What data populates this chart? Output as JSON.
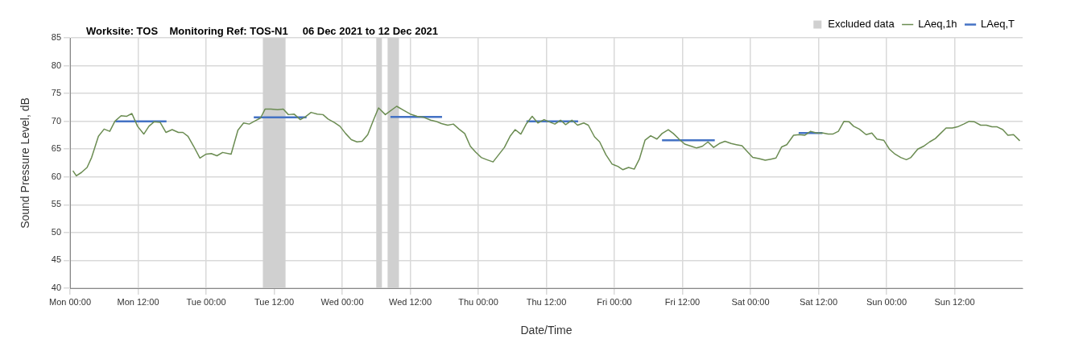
{
  "chart_data": {
    "type": "line",
    "title": "Worksite: TOS    Monitoring Ref: TOS-N1     06 Dec 2021 to 12 Dec 2021",
    "xlabel": "Date/Time",
    "ylabel": "Sound Pressure Level, dB",
    "xlim": [
      "2021-12-06T00:00",
      "2021-12-13T00:00"
    ],
    "xticks": [
      {
        "value": "2021-12-06T00:00",
        "label": "Mon 00:00"
      },
      {
        "value": "2021-12-06T12:00",
        "label": "Mon 12:00"
      },
      {
        "value": "2021-12-07T00:00",
        "label": "Tue 00:00"
      },
      {
        "value": "2021-12-07T12:00",
        "label": "Tue 12:00"
      },
      {
        "value": "2021-12-08T00:00",
        "label": "Wed 00:00"
      },
      {
        "value": "2021-12-08T12:00",
        "label": "Wed 12:00"
      },
      {
        "value": "2021-12-09T00:00",
        "label": "Thu 00:00"
      },
      {
        "value": "2021-12-09T12:00",
        "label": "Thu 12:00"
      },
      {
        "value": "2021-12-10T00:00",
        "label": "Fri 00:00"
      },
      {
        "value": "2021-12-10T12:00",
        "label": "Fri 12:00"
      },
      {
        "value": "2021-12-11T00:00",
        "label": "Sat 00:00"
      },
      {
        "value": "2021-12-11T12:00",
        "label": "Sat 12:00"
      },
      {
        "value": "2021-12-12T00:00",
        "label": "Sun 00:00"
      },
      {
        "value": "2021-12-12T12:00",
        "label": "Sun 12:00"
      }
    ],
    "ylim": [
      40,
      85
    ],
    "yticks": [
      40,
      45,
      50,
      55,
      60,
      65,
      70,
      75,
      80,
      85
    ],
    "grid": true,
    "legend": "top right",
    "marker": "none",
    "line_style": "solid",
    "bands": [
      {
        "axis": "x",
        "from": "2021-12-07T10:00",
        "to": "2021-12-07T14:00",
        "label": "Excluded data",
        "color": "#d0d0d0"
      },
      {
        "axis": "x",
        "from": "2021-12-08T06:00",
        "to": "2021-12-08T07:00",
        "color": "#d0d0d0"
      },
      {
        "axis": "x",
        "from": "2021-12-08T08:00",
        "to": "2021-12-08T10:00",
        "color": "#d0d0d0"
      }
    ],
    "series": [
      {
        "name": "LAeq,1h",
        "color": "#6b8c52",
        "x": [
          "2021-12-06T00:30",
          "2021-12-06T01:06",
          "2021-12-06T02:00",
          "2021-12-06T03:00",
          "2021-12-06T03:48",
          "2021-12-06T05:00",
          "2021-12-06T06:00",
          "2021-12-06T07:00",
          "2021-12-06T07:54",
          "2021-12-06T09:00",
          "2021-12-06T10:00",
          "2021-12-06T10:54",
          "2021-12-06T11:54",
          "2021-12-06T13:00",
          "2021-12-06T13:54",
          "2021-12-06T14:48",
          "2021-12-06T15:54",
          "2021-12-06T16:54",
          "2021-12-06T18:00",
          "2021-12-06T19:06",
          "2021-12-06T19:54",
          "2021-12-06T20:48",
          "2021-12-06T21:48",
          "2021-12-06T22:54",
          "2021-12-07T00:00",
          "2021-12-07T00:54",
          "2021-12-07T01:54",
          "2021-12-07T02:54",
          "2021-12-07T04:24",
          "2021-12-07T05:36",
          "2021-12-07T06:36",
          "2021-12-07T07:36",
          "2021-12-07T08:30",
          "2021-12-07T09:36",
          "2021-12-07T10:24",
          "2021-12-07T11:24",
          "2021-12-07T12:36",
          "2021-12-07T13:36",
          "2021-12-07T14:30",
          "2021-12-07T15:30",
          "2021-12-07T16:36",
          "2021-12-07T17:30",
          "2021-12-07T18:30",
          "2021-12-07T19:36",
          "2021-12-07T20:36",
          "2021-12-07T21:30",
          "2021-12-07T22:36",
          "2021-12-07T23:36",
          "2021-12-08T00:36",
          "2021-12-08T01:36",
          "2021-12-08T02:36",
          "2021-12-08T03:30",
          "2021-12-08T04:30",
          "2021-12-08T05:30",
          "2021-12-08T06:24",
          "2021-12-08T07:36",
          "2021-12-08T09:36",
          "2021-12-08T10:48",
          "2021-12-08T12:00",
          "2021-12-08T13:12",
          "2021-12-08T14:24",
          "2021-12-08T15:36",
          "2021-12-08T16:30",
          "2021-12-08T17:30",
          "2021-12-08T18:36",
          "2021-12-08T19:36",
          "2021-12-08T20:36",
          "2021-12-08T21:36",
          "2021-12-08T22:36",
          "2021-12-08T23:30",
          "2021-12-09T00:30",
          "2021-12-09T01:30",
          "2021-12-09T02:36",
          "2021-12-09T03:36",
          "2021-12-09T04:36",
          "2021-12-09T05:36",
          "2021-12-09T06:30",
          "2021-12-09T07:30",
          "2021-12-09T08:30",
          "2021-12-09T09:30",
          "2021-12-09T10:30",
          "2021-12-09T11:36",
          "2021-12-09T12:30",
          "2021-12-09T13:30",
          "2021-12-09T14:30",
          "2021-12-09T15:24",
          "2021-12-09T16:30",
          "2021-12-09T17:30",
          "2021-12-09T18:36",
          "2021-12-09T19:24",
          "2021-12-09T20:30",
          "2021-12-09T21:24",
          "2021-12-09T22:30",
          "2021-12-09T23:36",
          "2021-12-10T00:36",
          "2021-12-10T01:30",
          "2021-12-10T02:30",
          "2021-12-10T03:30",
          "2021-12-10T04:24",
          "2021-12-10T05:24",
          "2021-12-10T06:24",
          "2021-12-10T07:30",
          "2021-12-10T08:24",
          "2021-12-10T09:30",
          "2021-12-10T10:24",
          "2021-12-10T11:24",
          "2021-12-10T12:24",
          "2021-12-10T13:36",
          "2021-12-10T14:30",
          "2021-12-10T15:30",
          "2021-12-10T16:30",
          "2021-12-10T17:30",
          "2021-12-10T18:30",
          "2021-12-10T19:30",
          "2021-12-10T20:36",
          "2021-12-10T21:30",
          "2021-12-10T22:30",
          "2021-12-10T23:30",
          "2021-12-11T00:24",
          "2021-12-11T01:30",
          "2021-12-11T02:36",
          "2021-12-11T03:36",
          "2021-12-11T04:30",
          "2021-12-11T05:30",
          "2021-12-11T06:24",
          "2021-12-11T07:36",
          "2021-12-11T08:36",
          "2021-12-11T09:36",
          "2021-12-11T10:36",
          "2021-12-11T11:42",
          "2021-12-11T12:48",
          "2021-12-11T13:42",
          "2021-12-11T14:30",
          "2021-12-11T15:30",
          "2021-12-11T16:30",
          "2021-12-11T17:24",
          "2021-12-11T18:12",
          "2021-12-11T19:12",
          "2021-12-11T20:24",
          "2021-12-11T21:24",
          "2021-12-11T22:18",
          "2021-12-11T23:30",
          "2021-12-12T00:30",
          "2021-12-12T01:30",
          "2021-12-12T02:30",
          "2021-12-12T03:30",
          "2021-12-12T04:18",
          "2021-12-12T05:30",
          "2021-12-12T06:30",
          "2021-12-12T07:36",
          "2021-12-12T08:36",
          "2021-12-12T09:30",
          "2021-12-12T10:30",
          "2021-12-12T11:36",
          "2021-12-12T12:30",
          "2021-12-12T13:36",
          "2021-12-12T14:36",
          "2021-12-12T15:30",
          "2021-12-12T16:36",
          "2021-12-12T17:36",
          "2021-12-12T18:36",
          "2021-12-12T19:30",
          "2021-12-12T20:30",
          "2021-12-12T21:24",
          "2021-12-12T22:24",
          "2021-12-12T23:30"
        ],
        "values": [
          61.1,
          60.2,
          60.8,
          61.7,
          63.5,
          67.3,
          68.6,
          68.2,
          70,
          71,
          70.9,
          71.4,
          69.1,
          67.7,
          69.1,
          69.9,
          69.8,
          68,
          68.5,
          68,
          68,
          67.3,
          65.5,
          63.4,
          64.1,
          64.2,
          63.8,
          64.4,
          64.1,
          68.4,
          69.7,
          69.5,
          70,
          70.6,
          72.2,
          72.2,
          72.1,
          72.2,
          71.2,
          71.3,
          70.3,
          70.8,
          71.6,
          71.3,
          71.2,
          70.4,
          69.8,
          69.1,
          67.8,
          66.7,
          66.3,
          66.4,
          67.6,
          70.2,
          72.4,
          71.2,
          72.7,
          72,
          71.3,
          70.9,
          70.7,
          70.2,
          70,
          69.6,
          69.3,
          69.5,
          68.6,
          67.8,
          65.5,
          64.5,
          63.5,
          63.1,
          62.7,
          64,
          65.3,
          67.3,
          68.5,
          67.7,
          69.6,
          70.9,
          69.7,
          70.3,
          69.9,
          69.5,
          70.2,
          69.4,
          70.2,
          69.3,
          69.7,
          69.3,
          67.2,
          66.3,
          64,
          62.3,
          61.9,
          61.3,
          61.7,
          61.4,
          63.2,
          66.6,
          67.4,
          66.8,
          67.8,
          68.5,
          67.8,
          66.8,
          65.9,
          65.5,
          65.2,
          65.5,
          66.3,
          65.3,
          66,
          66.4,
          66,
          65.8,
          65.6,
          64.5,
          63.5,
          63.3,
          63,
          63.2,
          63.4,
          65.4,
          65.8,
          67.5,
          67.6,
          67.5,
          68.2,
          67.9,
          67.9,
          67.7,
          67.7,
          68.2,
          70,
          69.9,
          69.1,
          68.6,
          67.6,
          67.9,
          66.8,
          66.6,
          65,
          64.1,
          63.5,
          63.1,
          63.5,
          65,
          65.5,
          66.3,
          66.9,
          67.8,
          68.8,
          68.8,
          69,
          69.5,
          70,
          69.9,
          69.3,
          69.3,
          69,
          69,
          68.5,
          67.5,
          67.6,
          66.5
        ]
      },
      {
        "name": "LAeq,T",
        "color": "#4472c4",
        "x": [
          "2021-12-06T08:00",
          "2021-12-06T17:00",
          "2021-12-06T20:00",
          "2021-12-07T08:24",
          "2021-12-07T17:42",
          "2021-12-07T21:00",
          "2021-12-08T08:30",
          "2021-12-08T17:36",
          "2021-12-08T22:00",
          "2021-12-09T08:30",
          "2021-12-09T17:36",
          "2021-12-09T23:00",
          "2021-12-10T08:24",
          "2021-12-10T17:42",
          "2021-12-11T00:00",
          "2021-12-11T08:30",
          "2021-12-11T12:42"
        ],
        "values": [
          70,
          70,
          null,
          70.7,
          70.7,
          null,
          70.8,
          70.8,
          null,
          70,
          70,
          null,
          66.6,
          66.6,
          null,
          67.9,
          67.9
        ]
      }
    ]
  }
}
